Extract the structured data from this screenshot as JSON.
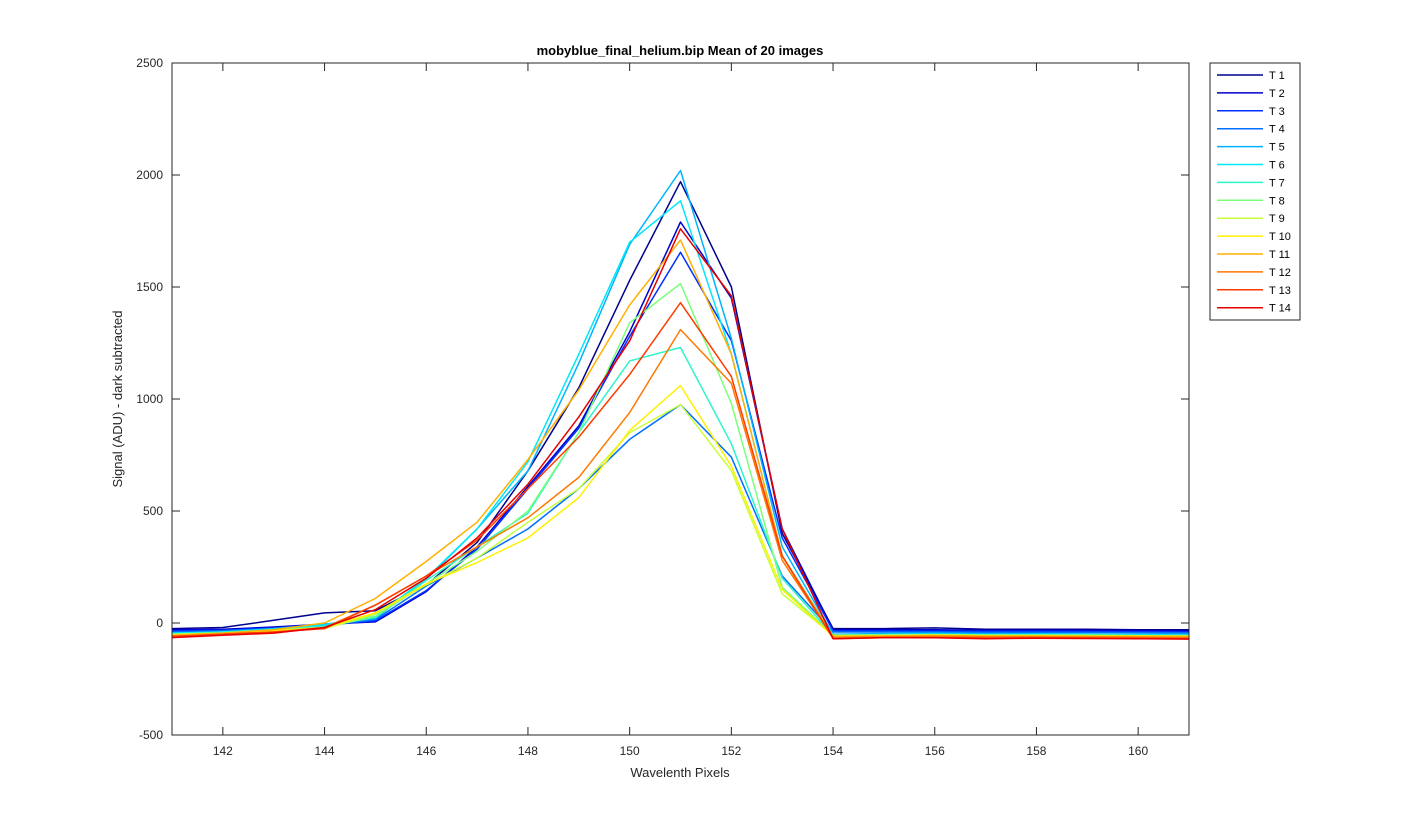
{
  "chart_data": {
    "type": "line",
    "title": "mobyblue_final_helium.bip  Mean of 20 images",
    "xlabel": "Wavelenth Pixels",
    "ylabel": "Signal (ADU) - dark subtracted",
    "xlim": [
      141,
      161
    ],
    "ylim": [
      -500,
      2500
    ],
    "xticks": [
      142,
      144,
      146,
      148,
      150,
      152,
      154,
      156,
      158,
      160
    ],
    "yticks": [
      -500,
      0,
      500,
      1000,
      1500,
      2000,
      2500
    ],
    "grid": false,
    "legend_position": "outside-top-right",
    "x": [
      141,
      142,
      143,
      144,
      145,
      146,
      147,
      148,
      149,
      150,
      151,
      152,
      153,
      154,
      155,
      156,
      157,
      158,
      159,
      160,
      161
    ],
    "series": [
      {
        "name": "T 1",
        "color": "#00008F",
        "values": [
          -25,
          -20,
          12,
          45,
          55,
          170,
          360,
          680,
          1050,
          1530,
          1970,
          1500,
          400,
          -25,
          -25,
          -22,
          -28,
          -28,
          -28,
          -30,
          -30
        ]
      },
      {
        "name": "T 2",
        "color": "#0000CC",
        "values": [
          -30,
          -28,
          -18,
          -5,
          5,
          140,
          340,
          610,
          880,
          1300,
          1790,
          1450,
          420,
          -30,
          -30,
          -30,
          -32,
          -32,
          -32,
          -34,
          -35
        ]
      },
      {
        "name": "T 3",
        "color": "#0030FF",
        "values": [
          -35,
          -32,
          -22,
          -10,
          10,
          145,
          330,
          600,
          870,
          1280,
          1655,
          1260,
          380,
          -35,
          -35,
          -36,
          -37,
          -37,
          -38,
          -39,
          -40
        ]
      },
      {
        "name": "T 4",
        "color": "#0070FF",
        "values": [
          -40,
          -35,
          -25,
          -10,
          15,
          165,
          290,
          420,
          600,
          820,
          975,
          740,
          210,
          -40,
          -40,
          -40,
          -42,
          -42,
          -42,
          -43,
          -44
        ]
      },
      {
        "name": "T 5",
        "color": "#00B4FF",
        "values": [
          -45,
          -40,
          -25,
          -5,
          20,
          195,
          420,
          680,
          1160,
          1690,
          2020,
          1270,
          340,
          -50,
          -47,
          -45,
          -48,
          -48,
          -49,
          -50,
          -50
        ]
      },
      {
        "name": "T 6",
        "color": "#00E8F8",
        "values": [
          -45,
          -40,
          -28,
          -8,
          30,
          200,
          420,
          720,
          1200,
          1700,
          1885,
          1200,
          300,
          -55,
          -52,
          -50,
          -53,
          -52,
          -53,
          -54,
          -55
        ]
      },
      {
        "name": "T 7",
        "color": "#2EF5C8",
        "values": [
          -50,
          -40,
          -30,
          -15,
          25,
          190,
          340,
          490,
          850,
          1170,
          1230,
          800,
          200,
          -55,
          -52,
          -50,
          -53,
          -52,
          -53,
          -54,
          -55
        ]
      },
      {
        "name": "T 8",
        "color": "#7BFF7B",
        "values": [
          -50,
          -45,
          -30,
          -20,
          30,
          175,
          320,
          500,
          850,
          1340,
          1515,
          980,
          160,
          -55,
          -55,
          -52,
          -55,
          -55,
          -56,
          -57,
          -58
        ]
      },
      {
        "name": "T 9",
        "color": "#C8FF37",
        "values": [
          -50,
          -45,
          -35,
          -25,
          40,
          170,
          290,
          450,
          600,
          850,
          975,
          680,
          130,
          -55,
          -55,
          -53,
          -55,
          -55,
          -56,
          -57,
          -58
        ]
      },
      {
        "name": "T 10",
        "color": "#FFF000",
        "values": [
          -55,
          -45,
          -35,
          -20,
          45,
          175,
          270,
          380,
          560,
          860,
          1060,
          700,
          150,
          -60,
          -58,
          -56,
          -58,
          -58,
          -59,
          -60,
          -60
        ]
      },
      {
        "name": "T 11",
        "color": "#FFB000",
        "values": [
          -55,
          -45,
          -30,
          0,
          110,
          275,
          450,
          730,
          1040,
          1420,
          1710,
          1200,
          300,
          -60,
          -58,
          -56,
          -58,
          -58,
          -59,
          -60,
          -60
        ]
      },
      {
        "name": "T 12",
        "color": "#FF7800",
        "values": [
          -60,
          -50,
          -40,
          -20,
          80,
          210,
          340,
          470,
          650,
          940,
          1310,
          1070,
          280,
          -65,
          -62,
          -60,
          -62,
          -62,
          -63,
          -64,
          -65
        ]
      },
      {
        "name": "T 13",
        "color": "#FF3A00",
        "values": [
          -60,
          -50,
          -40,
          -25,
          80,
          210,
          370,
          600,
          830,
          1110,
          1430,
          1100,
          300,
          -70,
          -65,
          -65,
          -67,
          -66,
          -67,
          -68,
          -70
        ]
      },
      {
        "name": "T 14",
        "color": "#E60000",
        "values": [
          -65,
          -55,
          -45,
          -20,
          60,
          200,
          380,
          620,
          920,
          1260,
          1760,
          1460,
          420,
          -70,
          -65,
          -66,
          -70,
          -68,
          -69,
          -70,
          -72
        ]
      }
    ]
  }
}
